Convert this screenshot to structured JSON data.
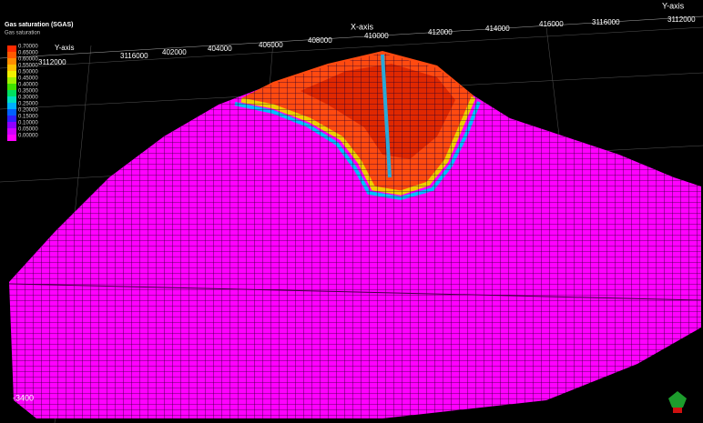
{
  "legend": {
    "title": "Gas saturation (SGAS)",
    "subtitle": "Gas saturation",
    "entries": [
      {
        "label": "0.70000",
        "color": "#ff2a00"
      },
      {
        "label": "0.65000",
        "color": "#ff5a00"
      },
      {
        "label": "0.60000",
        "color": "#ff8c00"
      },
      {
        "label": "0.55000",
        "color": "#ffc000"
      },
      {
        "label": "0.50000",
        "color": "#f0f000"
      },
      {
        "label": "0.45000",
        "color": "#a0f000"
      },
      {
        "label": "0.40000",
        "color": "#40e000"
      },
      {
        "label": "0.35000",
        "color": "#00e060"
      },
      {
        "label": "0.30000",
        "color": "#00e0c0"
      },
      {
        "label": "0.25000",
        "color": "#00b0ff"
      },
      {
        "label": "0.20000",
        "color": "#0060ff"
      },
      {
        "label": "0.15000",
        "color": "#3020ff"
      },
      {
        "label": "0.10000",
        "color": "#9000ff"
      },
      {
        "label": "0.05000",
        "color": "#d000ff"
      },
      {
        "label": "0.00000",
        "color": "#ff00ff"
      }
    ]
  },
  "axes": {
    "x_label": "X-axis",
    "y_label": "Y-axis",
    "y_label_near": "Y-axis",
    "y_tick_near": "3112000",
    "top_ticks": [
      "3116000",
      "402000",
      "404000",
      "406000",
      "408000",
      "410000",
      "412000",
      "414000",
      "416000",
      "3116000",
      "3112000"
    ],
    "depth_tick": "-3400"
  }
}
